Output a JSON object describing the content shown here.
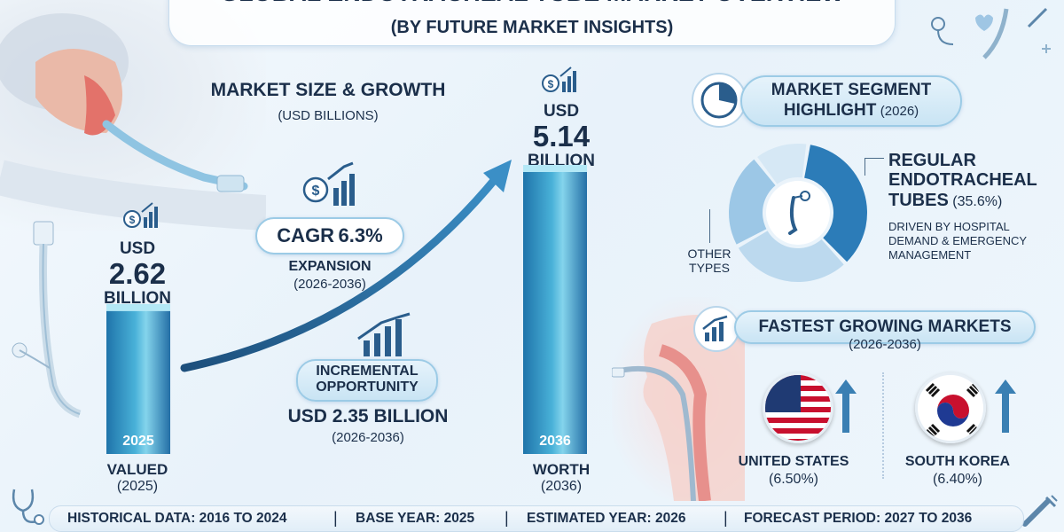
{
  "header": {
    "title": "GLOBAL ENDOTRACHEAL TUBE MARKET OVERVIEW",
    "subtitle": "(BY FUTURE MARKET INSIGHTS)"
  },
  "market_size": {
    "heading": "MARKET SIZE & GROWTH",
    "unit_note": "(USD BILLIONS)"
  },
  "left_bar": {
    "currency": "USD",
    "value": "2.62",
    "unit": "BILLION",
    "year": "2025",
    "caption": "VALUED",
    "caption_year": "(2025)"
  },
  "right_bar": {
    "currency": "USD",
    "value": "5.14",
    "unit": "BILLION",
    "year": "2036",
    "caption": "WORTH",
    "caption_year": "(2036)"
  },
  "cagr": {
    "label": "CAGR",
    "value": "6.3%",
    "desc": "EXPANSION",
    "period": "(2026-2036)"
  },
  "incremental": {
    "label_line1": "INCREMENTAL",
    "label_line2": "OPPORTUNITY",
    "value": "USD 2.35 BILLION",
    "period": "(2026-2036)"
  },
  "segment": {
    "heading_line1": "MARKET SEGMENT",
    "heading_line2": "HIGHLIGHT",
    "heading_year": "(2026)",
    "primary_line1": "REGULAR",
    "primary_line2": "ENDOTRACHEAL",
    "primary_line3": "TUBES",
    "primary_share": "(35.6%)",
    "primary_desc_line1": "DRIVEN BY HOSPITAL",
    "primary_desc_line2": "DEMAND & EMERGENCY",
    "primary_desc_line3": "MANAGEMENT",
    "other_line1": "OTHER",
    "other_line2": "TYPES"
  },
  "fastest": {
    "heading": "FASTEST GROWING MARKETS",
    "period": "(2026-2036)",
    "markets": [
      {
        "name": "UNITED STATES",
        "rate": "(6.50%)"
      },
      {
        "name": "SOUTH KOREA",
        "rate": "(6.40%)"
      }
    ]
  },
  "footer": {
    "historical": "HISTORICAL DATA: 2016 TO 2024",
    "base_year": "BASE YEAR: 2025",
    "estimated_year": "ESTIMATED YEAR: 2026",
    "forecast": "FORECAST PERIOD: 2027 TO 2036",
    "separator": "|"
  },
  "colors": {
    "navy": "#1b2f4a",
    "bar_blue": "#2a84b8",
    "accent_light": "#a9e4f4",
    "donut_dark": "#2a7ab5",
    "donut_light": "#cfe3f2"
  },
  "chart_data": [
    {
      "type": "bar",
      "categories": [
        "2025",
        "2036"
      ],
      "values": [
        2.62,
        5.14
      ],
      "title": "MARKET SIZE & GROWTH",
      "ylabel": "(USD BILLIONS)"
    },
    {
      "type": "pie",
      "categories": [
        "REGULAR ENDOTRACHEAL TUBES",
        "OTHER TYPES"
      ],
      "values": [
        35.6,
        64.4
      ],
      "title": "MARKET SEGMENT HIGHLIGHT (2026)"
    }
  ]
}
